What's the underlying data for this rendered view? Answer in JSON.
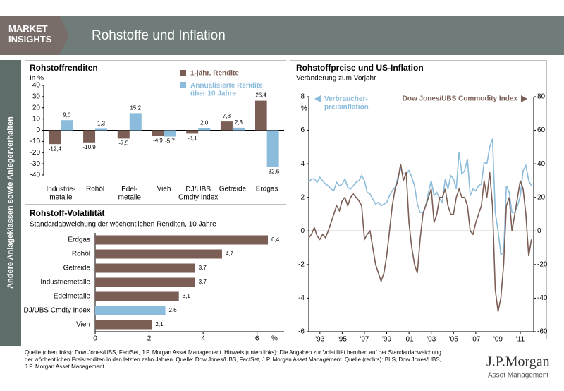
{
  "header": {
    "brand": "MARKET\nINSIGHTS",
    "title": "Rohstoffe und Inflation"
  },
  "sidebar": "Andere Anlageklassen sowie Anlegerverhalten",
  "chart_data": [
    {
      "type": "bar",
      "title": "Rohstoffrenditen",
      "ylabel": "In %",
      "categories": [
        "Industrie-\nmetalle",
        "Rohöl",
        "Edel-\nmetalle",
        "Vieh",
        "DJ/UBS\nCmdty Index",
        "Getreide",
        "Erdgas"
      ],
      "series": [
        {
          "name": "1-jähr. Rendite",
          "color": "#7b5e55",
          "values": [
            -12.4,
            -10.9,
            -7.5,
            -4.9,
            -3.1,
            7.8,
            26.4
          ],
          "value_labels": [
            "-12,4",
            "-10,9",
            "-7,5",
            "-4,9",
            "-3,1",
            "7,8",
            "26,4"
          ]
        },
        {
          "name": "Annualisierte Rendite\nüber 10 Jahre",
          "color": "#8cbcdb",
          "values": [
            9.0,
            1.3,
            15.2,
            -5.7,
            2.0,
            2.3,
            -32.6
          ],
          "value_labels": [
            "9,0",
            "1,3",
            "15,2",
            "-5,7",
            "2,0",
            "2,3",
            "-32,6"
          ]
        }
      ],
      "ylim": [
        -40,
        40
      ],
      "yticks": [
        -40,
        -30,
        -20,
        -10,
        0,
        10,
        20,
        30,
        40
      ]
    },
    {
      "type": "barh",
      "title": "Rohstoff-Volatilität",
      "subtitle": "Standardabweichung der wöchentlichen Renditen, 10 Jahre",
      "categories": [
        "Erdgas",
        "Rohöl",
        "Getreide",
        "Industriemetalle",
        "Edelmetalle",
        "DJ/UBS Cmdty Index",
        "Vieh"
      ],
      "values": [
        6.4,
        4.7,
        3.7,
        3.7,
        3.1,
        2.6,
        2.1
      ],
      "value_labels": [
        "6,4",
        "4,7",
        "3,7",
        "3,7",
        "3,1",
        "2,6",
        "2,1"
      ],
      "colors": [
        "#7b5e55",
        "#7b5e55",
        "#7b5e55",
        "#7b5e55",
        "#7b5e55",
        "#8cbcdb",
        "#7b5e55"
      ],
      "xlim": [
        0,
        7
      ],
      "xticks": [
        0,
        2,
        4,
        6
      ],
      "xlabel": "%"
    },
    {
      "type": "line",
      "title": "Rohstoffpreise und US-Inflation",
      "subtitle": "Veränderung zum Vorjahr",
      "ylabel": "%",
      "x": [
        1992,
        1992.25,
        1992.5,
        1992.75,
        1993,
        1993.25,
        1993.5,
        1993.75,
        1994,
        1994.25,
        1994.5,
        1994.75,
        1995,
        1995.25,
        1995.5,
        1995.75,
        1996,
        1996.25,
        1996.5,
        1996.75,
        1997,
        1997.25,
        1997.5,
        1997.75,
        1998,
        1998.25,
        1998.5,
        1998.75,
        1999,
        1999.25,
        1999.5,
        1999.75,
        2000,
        2000.25,
        2000.5,
        2000.75,
        2001,
        2001.25,
        2001.5,
        2001.75,
        2002,
        2002.25,
        2002.5,
        2002.75,
        2003,
        2003.25,
        2003.5,
        2003.75,
        2004,
        2004.25,
        2004.5,
        2004.75,
        2005,
        2005.25,
        2005.5,
        2005.75,
        2006,
        2006.25,
        2006.5,
        2006.75,
        2007,
        2007.25,
        2007.5,
        2007.75,
        2008,
        2008.25,
        2008.5,
        2008.75,
        2009,
        2009.25,
        2009.5,
        2009.75,
        2010,
        2010.25,
        2010.5,
        2010.75,
        2011,
        2011.25,
        2011.5,
        2011.75,
        2012
      ],
      "series": [
        {
          "name": "Verbraucher-\npreisinflation",
          "color": "#8cbcdb",
          "axis": "y",
          "values": [
            2.9,
            3.1,
            3.1,
            2.9,
            3.2,
            3.0,
            2.8,
            2.7,
            2.5,
            2.4,
            2.9,
            2.7,
            2.8,
            3.1,
            2.6,
            2.5,
            2.7,
            2.9,
            3.0,
            3.3,
            3.0,
            2.3,
            2.2,
            1.9,
            1.6,
            1.7,
            1.5,
            1.6,
            1.7,
            2.1,
            2.4,
            2.6,
            3.2,
            3.7,
            3.4,
            3.4,
            3.6,
            3.2,
            2.7,
            1.6,
            1.1,
            1.1,
            1.5,
            2.3,
            3.0,
            2.1,
            2.3,
            1.9,
            1.7,
            3.1,
            2.5,
            3.3,
            3.1,
            2.5,
            4.7,
            3.4,
            3.6,
            4.3,
            2.1,
            2.5,
            2.4,
            2.7,
            2.8,
            4.1,
            4.0,
            5.0,
            5.5,
            1.1,
            0.0,
            -1.4,
            -1.3,
            2.7,
            2.3,
            1.1,
            1.1,
            1.5,
            2.1,
            3.6,
            3.9,
            3.0,
            2.7
          ]
        },
        {
          "name": "Dow Jones/UBS Commodity Index",
          "color": "#7b5e55",
          "axis": "y2",
          "values": [
            -4,
            -2,
            2,
            -3,
            -5,
            -2,
            -4,
            0,
            5,
            10,
            15,
            12,
            18,
            20,
            15,
            20,
            22,
            20,
            18,
            15,
            -5,
            -2,
            0,
            -10,
            -20,
            -25,
            -30,
            -25,
            -15,
            0,
            15,
            25,
            30,
            40,
            30,
            35,
            5,
            -10,
            -20,
            -25,
            -5,
            10,
            15,
            20,
            25,
            5,
            10,
            20,
            20,
            25,
            15,
            10,
            10,
            20,
            25,
            20,
            20,
            15,
            0,
            -2,
            5,
            10,
            15,
            30,
            20,
            35,
            15,
            -35,
            -48,
            -40,
            -20,
            15,
            20,
            0,
            10,
            20,
            30,
            25,
            10,
            -15,
            -5
          ]
        }
      ],
      "xlim": [
        1992,
        2012.2
      ],
      "xticks": [
        {
          "value": 1993,
          "label": "'93"
        },
        {
          "value": 1995,
          "label": "'95"
        },
        {
          "value": 1997,
          "label": "'97"
        },
        {
          "value": 1999,
          "label": "'99"
        },
        {
          "value": 2001,
          "label": "'01"
        },
        {
          "value": 2003,
          "label": "'03"
        },
        {
          "value": 2005,
          "label": "'05"
        },
        {
          "value": 2007,
          "label": "'07"
        },
        {
          "value": 2009,
          "label": "'09"
        },
        {
          "value": 2011,
          "label": "'11"
        }
      ],
      "ylim": [
        -6,
        8
      ],
      "yticks": [
        -6,
        -4,
        -2,
        0,
        2,
        4,
        6,
        8
      ],
      "y2lim": [
        -60,
        80
      ],
      "y2ticks": [
        -60,
        -40,
        -20,
        0,
        20,
        40,
        60,
        80
      ]
    }
  ],
  "footer": {
    "source": [
      "Quelle (oben links): Dow Jones/UBS, FactSet, J.P. Morgan Asset Management. Hinweis (unten links): Die Angaben zur Volatilität beruhen auf der Standardabweichung",
      "der wöchentlichen Preisrenditen in den letzten zehn Jahren. Quelle: Dow Jones/UBS, FactSet, J.P. Morgan Asset Management. Quelle (rechts): BLS, Dow Jones/UBS,",
      "J.P. Morgan Asset Management."
    ],
    "logo": "J.P.Morgan",
    "logo_sub": "Asset Management"
  }
}
